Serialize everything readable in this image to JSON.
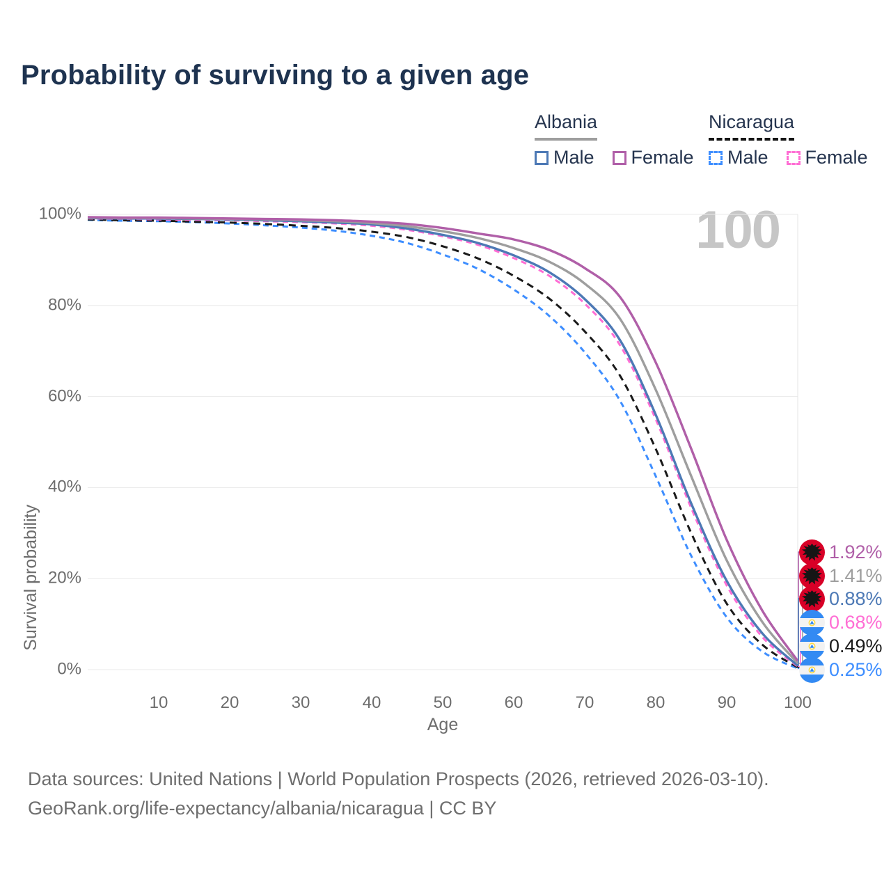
{
  "title": "Probability of surviving to a given age",
  "watermark": "100",
  "legend": {
    "groups": [
      {
        "country": "Albania",
        "line_style": "solid",
        "underline_color": "#9e9e9e",
        "items": [
          {
            "label": "Male",
            "color": "#4d79b5"
          },
          {
            "label": "Female",
            "color": "#b05fa8"
          }
        ]
      },
      {
        "country": "Nicaragua",
        "line_style": "dashed",
        "underline_color": "#151515",
        "items": [
          {
            "label": "Male",
            "color": "#3e8eff"
          },
          {
            "label": "Female",
            "color": "#ff6ed4"
          }
        ]
      }
    ]
  },
  "axes": {
    "ylabel": "Survival probability",
    "xlabel": "Age",
    "yticks": [
      "100%",
      "80%",
      "60%",
      "40%",
      "20%",
      "0%"
    ],
    "xticks": [
      "10",
      "20",
      "30",
      "40",
      "50",
      "60",
      "70",
      "80",
      "90",
      "100"
    ]
  },
  "chart_data": {
    "type": "line",
    "title": "Probability of surviving to a given age",
    "xlabel": "Age",
    "ylabel": "Survival probability",
    "xlim": [
      0,
      100
    ],
    "ylim": [
      0,
      100
    ],
    "grid": "horizontal",
    "legend_position": "top-right",
    "x": [
      0,
      5,
      10,
      15,
      20,
      25,
      30,
      35,
      40,
      45,
      50,
      55,
      60,
      65,
      70,
      75,
      80,
      85,
      90,
      95,
      100
    ],
    "series": [
      {
        "name": "Albania Female",
        "country": "Albania",
        "sex": "Female",
        "line_style": "solid",
        "color": "#b05fa8",
        "end_label": "1.92%",
        "values": [
          99.4,
          99.3,
          99.3,
          99.2,
          99.1,
          99.0,
          98.9,
          98.7,
          98.4,
          97.9,
          97.0,
          95.8,
          94.5,
          92.2,
          88.2,
          81.8,
          67.5,
          48.5,
          28.5,
          13.0,
          1.92
        ]
      },
      {
        "name": "Albania",
        "country": "Albania",
        "sex": "Both",
        "line_style": "solid",
        "color": "#9e9e9e",
        "end_label": "1.41%",
        "values": [
          99.3,
          99.2,
          99.2,
          99.1,
          99.0,
          98.9,
          98.7,
          98.5,
          98.1,
          97.4,
          96.3,
          94.8,
          92.6,
          89.6,
          84.8,
          77.0,
          61.5,
          42.5,
          24.0,
          10.5,
          1.41
        ]
      },
      {
        "name": "Albania Male",
        "country": "Albania",
        "sex": "Male",
        "line_style": "solid",
        "color": "#4d79b5",
        "end_label": "0.88%",
        "values": [
          99.2,
          99.1,
          99.1,
          99.0,
          98.9,
          98.7,
          98.5,
          98.2,
          97.8,
          96.9,
          95.5,
          93.7,
          91.0,
          87.3,
          81.4,
          72.3,
          56.0,
          36.5,
          19.5,
          8.0,
          0.88
        ]
      },
      {
        "name": "Nicaragua Female",
        "country": "Nicaragua",
        "sex": "Female",
        "line_style": "dashed",
        "color": "#ff6ed4",
        "end_label": "0.68%",
        "values": [
          99.1,
          99.0,
          98.9,
          98.8,
          98.7,
          98.5,
          98.3,
          98.0,
          97.5,
          96.6,
          95.2,
          93.3,
          90.4,
          86.5,
          80.4,
          71.2,
          55.0,
          35.5,
          18.5,
          7.2,
          0.68
        ]
      },
      {
        "name": "Nicaragua",
        "country": "Nicaragua",
        "sex": "Both",
        "line_style": "dashed",
        "color": "#1a1a1a",
        "end_label": "0.49%",
        "values": [
          98.9,
          98.7,
          98.6,
          98.4,
          98.2,
          97.9,
          97.5,
          97.0,
          96.2,
          95.0,
          93.0,
          90.3,
          86.5,
          81.5,
          74.3,
          64.5,
          48.5,
          30.0,
          14.5,
          5.5,
          0.49
        ]
      },
      {
        "name": "Nicaragua Male",
        "country": "Nicaragua",
        "sex": "Male",
        "line_style": "dashed",
        "color": "#3e8eff",
        "end_label": "0.25%",
        "values": [
          98.8,
          98.6,
          98.5,
          98.3,
          98.0,
          97.6,
          97.1,
          96.4,
          95.3,
          93.7,
          91.2,
          88.0,
          83.5,
          77.7,
          69.7,
          59.0,
          42.5,
          25.0,
          11.5,
          4.0,
          0.25
        ]
      }
    ]
  },
  "flag_colors": {
    "albania_red": "#d80027",
    "albania_eagle": "#151515",
    "nicaragua_blue": "#338af3",
    "nicaragua_white": "#f2f2f2",
    "nicaragua_gold": "#ffda44"
  },
  "footer": {
    "line1": "Data sources: United Nations | World Population Prospects (2026, retrieved 2026-03-10).",
    "line2": "GeoRank.org/life-expectancy/albania/nicaragua | CC BY"
  }
}
